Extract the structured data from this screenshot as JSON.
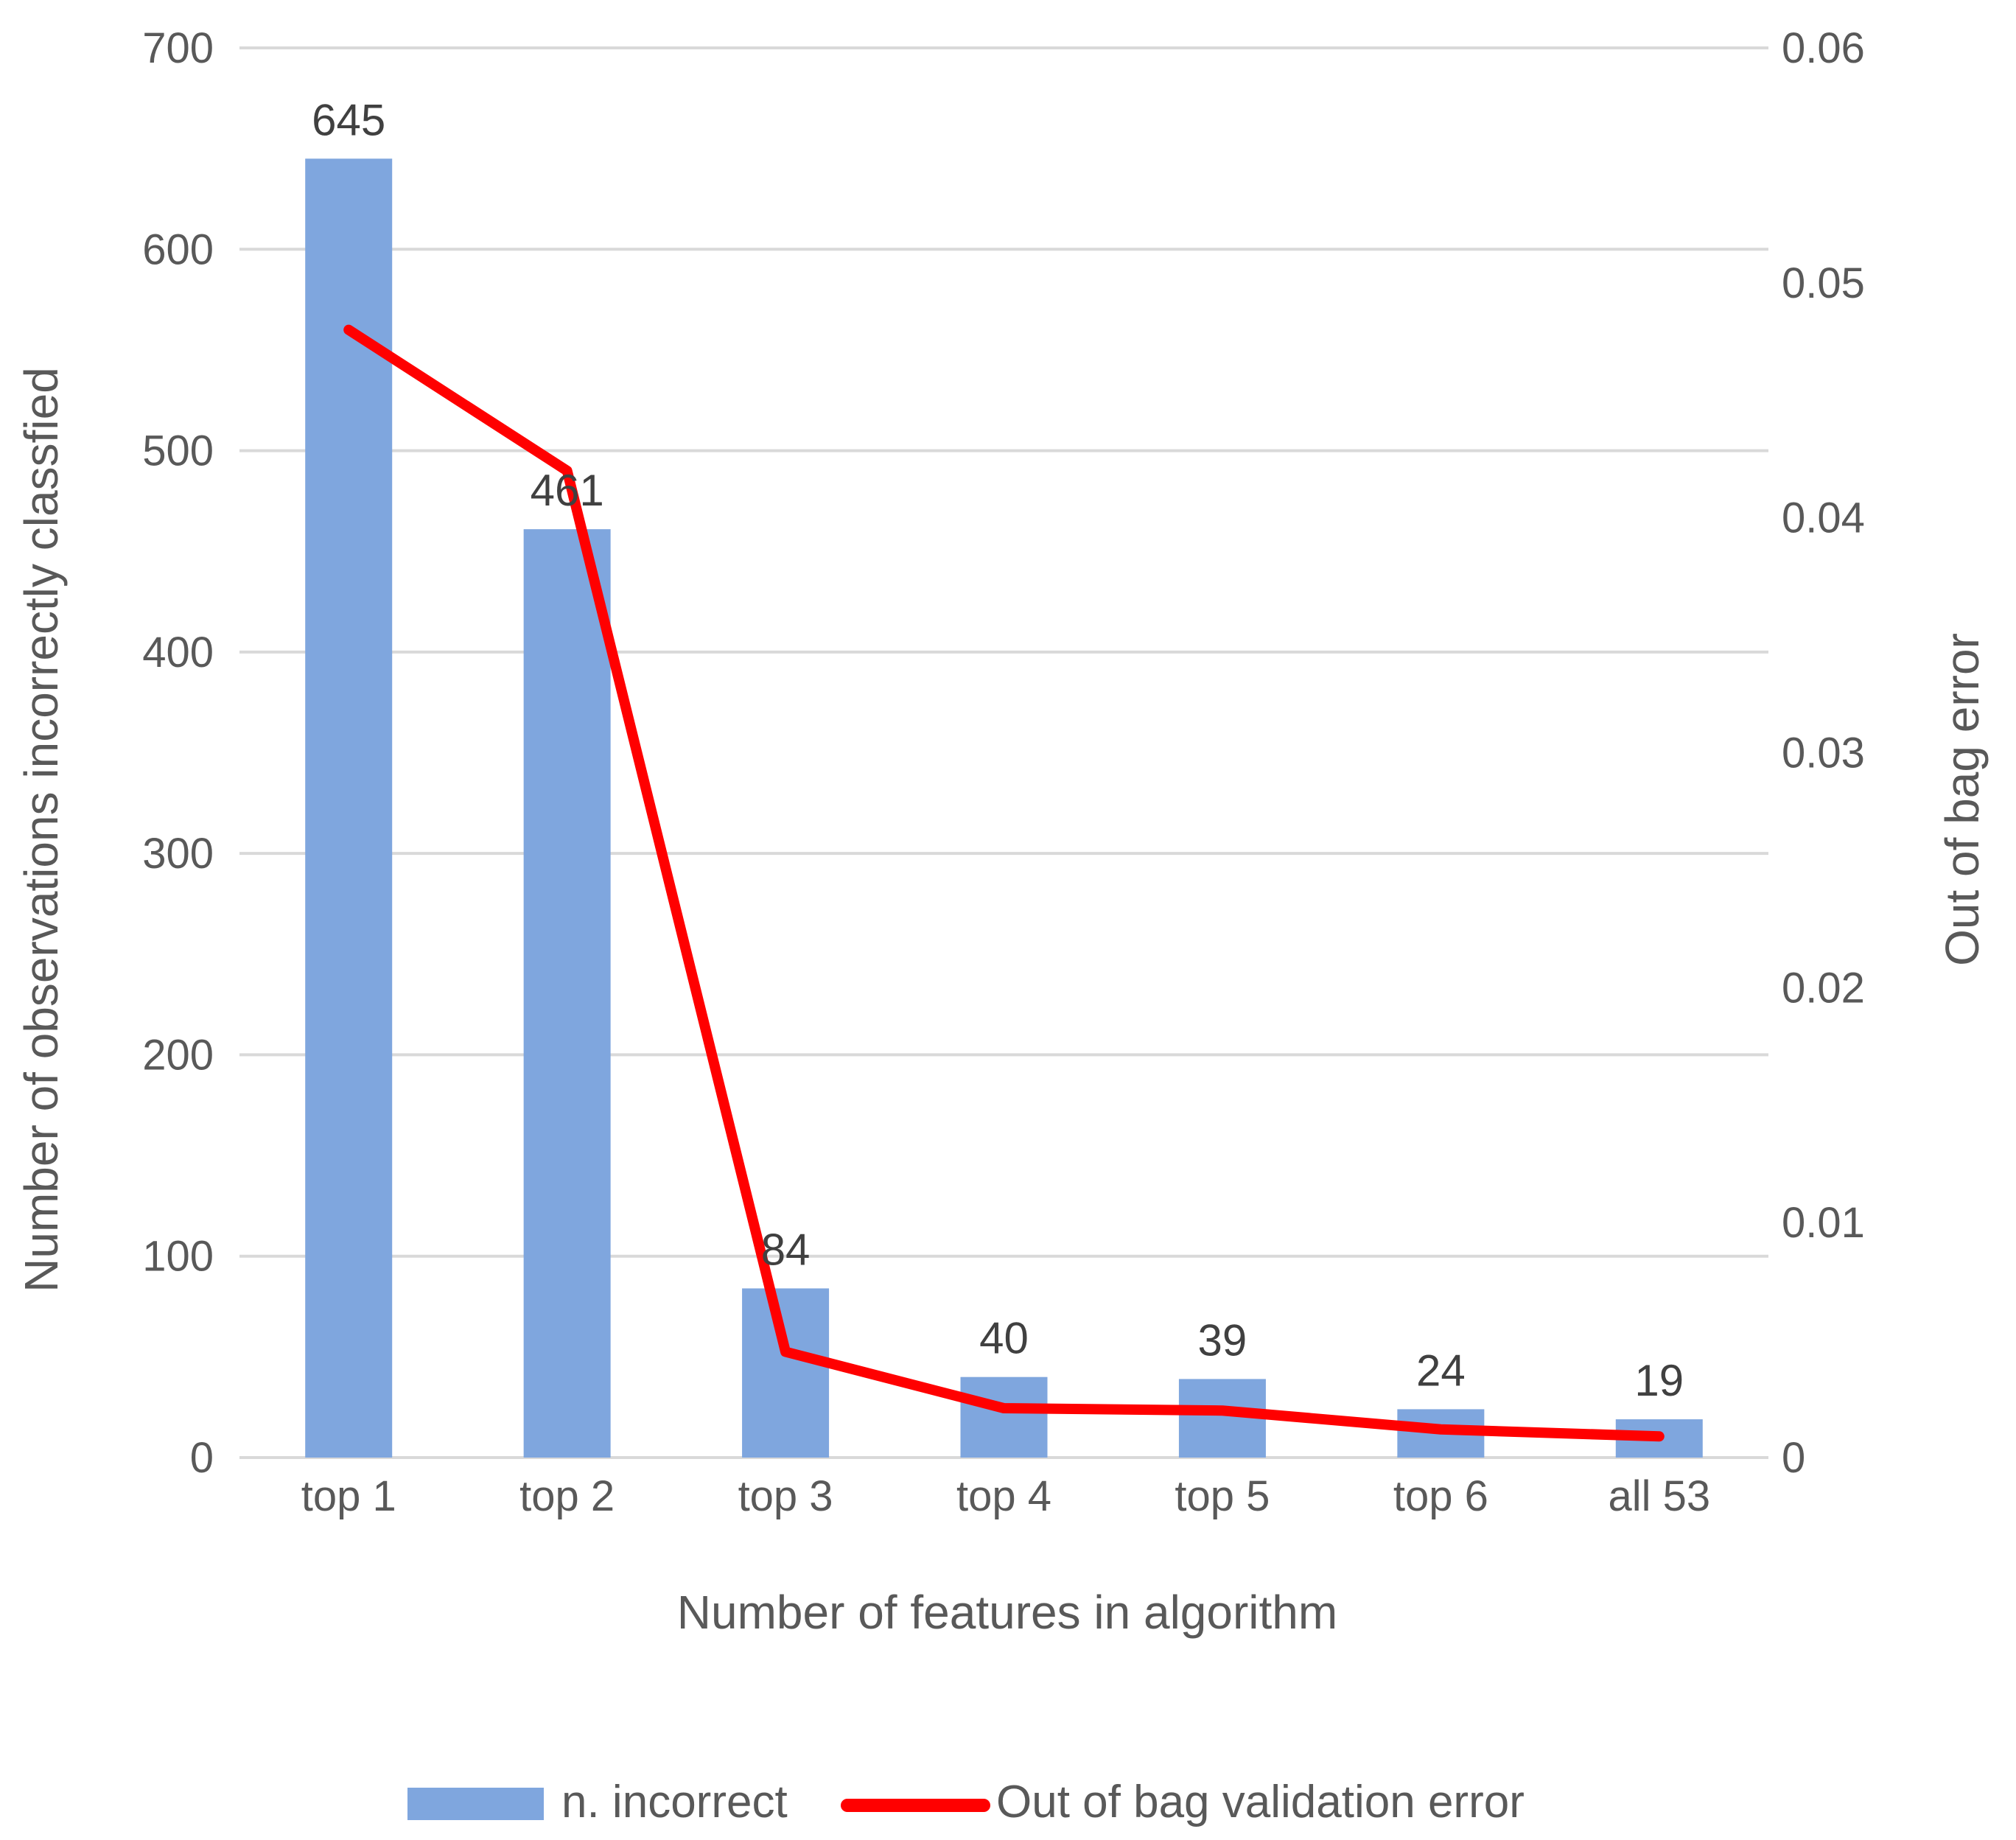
{
  "chart_data": {
    "type": "bar",
    "categories": [
      "top 1",
      "top 2",
      "top 3",
      "top 4",
      "top 5",
      "top 6",
      "all 53"
    ],
    "series": [
      {
        "name": "n. incorrect",
        "type": "bar",
        "axis": "left",
        "color": "#7fa6de",
        "values": [
          645,
          461,
          84,
          40,
          39,
          24,
          19
        ],
        "labels": [
          "645",
          "461",
          "84",
          "40",
          "39",
          "24",
          "19"
        ]
      },
      {
        "name": "Out of bag validation error",
        "type": "line",
        "axis": "right",
        "color": "#ff0000",
        "values": [
          0.048,
          0.042,
          0.0045,
          0.0021,
          0.002,
          0.0012,
          0.0009
        ]
      }
    ],
    "xlabel": "Number of features in algorithm",
    "ylabel": "Number of observations incorrectly classfied",
    "y2label": "Out of bag error",
    "ylim": [
      0,
      700
    ],
    "y2lim": [
      0,
      0.06
    ],
    "yticks": [
      "0",
      "100",
      "200",
      "300",
      "400",
      "500",
      "600",
      "700"
    ],
    "y2ticks": [
      "0",
      "0.01",
      "0.02",
      "0.03",
      "0.04",
      "0.05",
      "0.06"
    ],
    "grid": true,
    "legend_position": "bottom"
  }
}
